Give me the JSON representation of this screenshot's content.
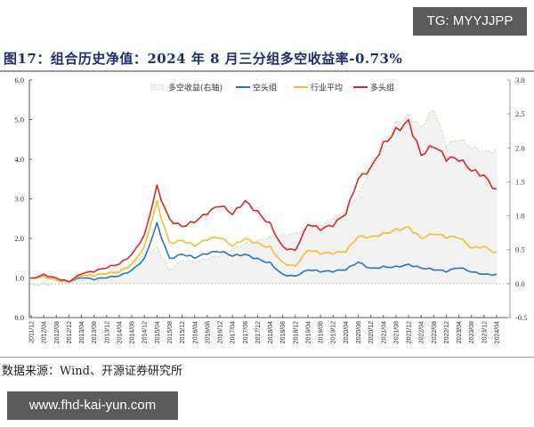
{
  "watermarks": {
    "top": "TG: MYYJJPP",
    "bottom": "www.fhd-kai-yun.com"
  },
  "figure": {
    "title": "图17：组合历史净值：2024 年 8 月三分组多空收益率-0.73%",
    "source": "数据来源：Wind、开源证券研究所"
  },
  "colors": {
    "long_short": "#c8d8a0",
    "short_group": "#2e75b6",
    "industry_avg": "#f2c12e",
    "long_group": "#d42a2a",
    "area_fill": "#f2f2f2",
    "title": "#1f2d6b"
  },
  "chart_data": {
    "type": "line",
    "title": "组合历史净值：2024 年 8 月三分组多空收益率-0.73%",
    "xlabel": "",
    "ylabel": "",
    "ylim": [
      0,
      6
    ],
    "y2lim": [
      -0.5,
      3
    ],
    "yticks": [
      "0.0",
      "1.0",
      "2.0",
      "3.0",
      "4.0",
      "5.0",
      "6.0"
    ],
    "y2ticks": [
      "-0.5",
      "0.0",
      "0.5",
      "1.0",
      "1.5",
      "2.0",
      "2.5",
      "3.0"
    ],
    "grid": false,
    "legend_position": "top-center",
    "categories": [
      "2011/12",
      "2012/04",
      "2012/08",
      "2012/12",
      "2013/04",
      "2013/08",
      "2013/12",
      "2014/04",
      "2014/08",
      "2014/12",
      "2015/04",
      "2015/08",
      "2015/12",
      "2016/04",
      "2016/08",
      "2016/12",
      "2017/04",
      "2017/08",
      "2017/12",
      "2018/04",
      "2018/08",
      "2018/12",
      "2019/04",
      "2019/08",
      "2019/12",
      "2020/04",
      "2020/08",
      "2020/12",
      "2021/04",
      "2021/08",
      "2021/12",
      "2022/04",
      "2022/08",
      "2022/12",
      "2023/04",
      "2023/08",
      "2023/12",
      "2024/04"
    ],
    "series": [
      {
        "name": "多空收益(右轴)",
        "axis": "right",
        "style": "dashed-area",
        "values": [
          0.0,
          0.0,
          0.0,
          0.0,
          0.05,
          0.1,
          0.15,
          0.2,
          0.3,
          0.45,
          0.55,
          0.2,
          0.35,
          0.3,
          0.35,
          0.4,
          0.5,
          0.6,
          0.65,
          0.7,
          0.72,
          0.75,
          0.8,
          0.85,
          0.95,
          1.05,
          1.3,
          1.7,
          2.0,
          2.4,
          2.5,
          2.3,
          2.55,
          2.0,
          2.1,
          2.0,
          1.95,
          2.0
        ]
      },
      {
        "name": "空头组",
        "axis": "left",
        "style": "line",
        "values": [
          1.0,
          1.05,
          0.95,
          0.9,
          1.0,
          0.95,
          1.0,
          1.05,
          1.2,
          1.5,
          2.4,
          1.5,
          1.6,
          1.5,
          1.6,
          1.65,
          1.55,
          1.6,
          1.5,
          1.4,
          1.1,
          1.05,
          1.2,
          1.15,
          1.15,
          1.2,
          1.4,
          1.25,
          1.3,
          1.3,
          1.35,
          1.25,
          1.2,
          1.15,
          1.25,
          1.15,
          1.1,
          1.1
        ]
      },
      {
        "name": "行业平均",
        "axis": "left",
        "style": "line",
        "values": [
          1.0,
          1.05,
          0.95,
          0.9,
          1.05,
          1.05,
          1.1,
          1.15,
          1.35,
          1.8,
          2.95,
          1.9,
          1.95,
          1.8,
          1.95,
          2.0,
          1.8,
          2.0,
          1.9,
          1.8,
          1.4,
          1.3,
          1.7,
          1.6,
          1.6,
          1.65,
          2.05,
          2.05,
          2.15,
          2.25,
          2.3,
          2.0,
          2.1,
          2.0,
          2.0,
          1.75,
          1.8,
          1.65
        ]
      },
      {
        "name": "多头组",
        "axis": "left",
        "style": "line",
        "values": [
          1.0,
          1.1,
          1.0,
          0.9,
          1.1,
          1.15,
          1.25,
          1.35,
          1.6,
          2.1,
          3.35,
          2.5,
          2.3,
          2.4,
          2.6,
          2.8,
          2.6,
          2.95,
          2.7,
          2.4,
          1.8,
          1.7,
          2.35,
          2.2,
          2.3,
          2.6,
          3.5,
          3.8,
          4.45,
          4.8,
          5.0,
          4.1,
          4.3,
          3.95,
          3.95,
          3.7,
          3.6,
          3.25
        ]
      }
    ]
  },
  "legend": {
    "items": [
      {
        "label": "多空收益(右轴)"
      },
      {
        "label": "空头组"
      },
      {
        "label": "行业平均"
      },
      {
        "label": "多头组"
      }
    ]
  }
}
